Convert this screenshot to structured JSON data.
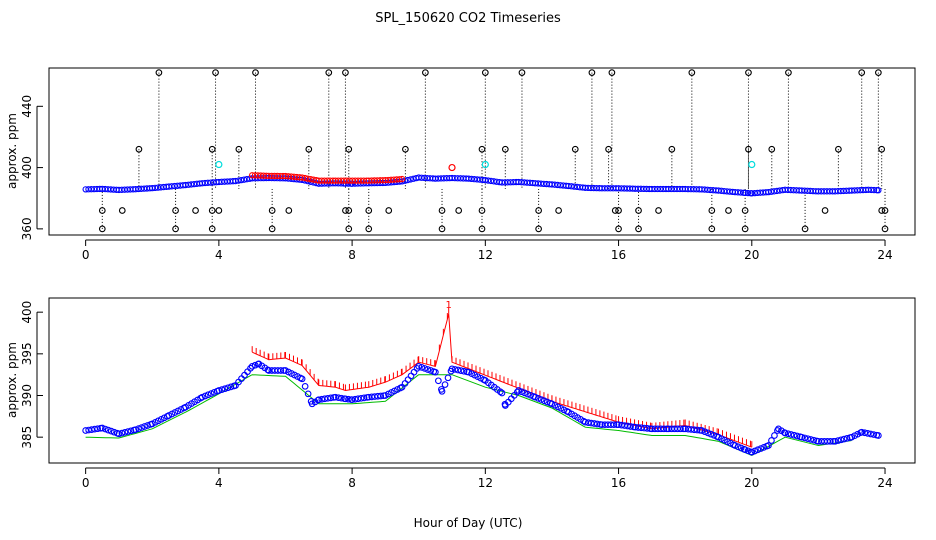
{
  "title": "SPL_150620  CO2 Timeseries",
  "chart_data": [
    {
      "type": "scatter",
      "panel": "top",
      "title": "SPL_150620  CO2 Timeseries",
      "xlabel": "",
      "ylabel": "approx. ppm",
      "xlim": [
        -1.1,
        24.9
      ],
      "ylim": [
        356,
        465
      ],
      "x_ticks": [
        "0",
        "4",
        "8",
        "12",
        "16",
        "20",
        "24"
      ],
      "y_ticks": [
        "360",
        "400",
        "440"
      ],
      "baseline_series": [
        {
          "name": "blue",
          "color": "#0000ff",
          "points": [
            [
              0,
              385.8
            ],
            [
              0.5,
              386.1
            ],
            [
              1,
              385.4
            ],
            [
              1.5,
              385.9
            ],
            [
              2,
              386.6
            ],
            [
              2.5,
              387.6
            ],
            [
              3,
              388.6
            ],
            [
              3.5,
              389.8
            ],
            [
              4,
              390.6
            ],
            [
              4.5,
              391.2
            ],
            [
              5,
              393.0
            ],
            [
              5.5,
              393.2
            ],
            [
              6,
              393.0
            ],
            [
              6.5,
              392.0
            ],
            [
              7,
              389.5
            ],
            [
              7.5,
              389.8
            ],
            [
              7.8,
              389.6
            ],
            [
              8,
              389.5
            ],
            [
              8.5,
              389.8
            ],
            [
              9,
              390.0
            ],
            [
              9.5,
              391.0
            ],
            [
              10,
              393.5
            ],
            [
              10.5,
              392.8
            ],
            [
              11,
              393.2
            ],
            [
              11.5,
              392.8
            ],
            [
              12,
              391.8
            ],
            [
              12.5,
              390.3
            ],
            [
              13,
              390.6
            ],
            [
              13.5,
              389.8
            ],
            [
              14,
              389.0
            ],
            [
              14.5,
              388.0
            ],
            [
              15,
              386.8
            ],
            [
              15.5,
              386.5
            ],
            [
              16,
              386.5
            ],
            [
              16.5,
              386.2
            ],
            [
              17,
              386.0
            ],
            [
              17.5,
              386.0
            ],
            [
              18,
              386.0
            ],
            [
              18.5,
              385.8
            ],
            [
              19,
              385.0
            ],
            [
              19.5,
              384.0
            ],
            [
              19.8,
              383.5
            ],
            [
              20,
              383.2
            ],
            [
              20.5,
              384.0
            ],
            [
              21,
              385.5
            ],
            [
              21.5,
              385.0
            ],
            [
              22,
              384.5
            ],
            [
              22.5,
              384.5
            ],
            [
              23,
              385.0
            ],
            [
              23.5,
              385.5
            ],
            [
              23.8,
              385.2
            ]
          ]
        },
        {
          "name": "red",
          "color": "#ff0000",
          "points": [
            [
              5,
              395.0
            ],
            [
              5.5,
              394.6
            ],
            [
              6,
              394.5
            ],
            [
              6.5,
              393.5
            ],
            [
              7,
              391.5
            ],
            [
              7.5,
              391.5
            ],
            [
              8.5,
              391.5
            ],
            [
              9,
              391.8
            ],
            [
              9.5,
              392.5
            ]
          ]
        }
      ],
      "spikes_high": [
        2.2,
        3.9,
        5.1,
        7.3,
        7.8,
        10.2,
        12.0,
        13.1,
        15.2,
        15.8,
        18.2,
        19.9,
        21.1,
        23.3,
        23.8
      ],
      "spikes_mid": [
        1.6,
        3.8,
        4.6,
        6.7,
        7.9,
        9.6,
        11.9,
        12.6,
        14.7,
        15.7,
        17.6,
        19.9,
        20.6,
        22.6,
        23.9
      ],
      "spikes_low": [
        0.5,
        1.1,
        2.7,
        3.3,
        3.8,
        4.0,
        5.6,
        6.1,
        7.8,
        7.9,
        8.5,
        9.1,
        10.7,
        11.2,
        11.9,
        13.6,
        14.2,
        15.9,
        16.0,
        16.6,
        17.2,
        18.8,
        19.3,
        19.8,
        22.2,
        23.9,
        24.0
      ],
      "spikes_floor": [
        0.5,
        2.7,
        3.8,
        5.6,
        7.9,
        8.5,
        10.7,
        11.9,
        13.6,
        16.0,
        16.6,
        18.8,
        19.8,
        21.6,
        24.0
      ],
      "highlights": [
        {
          "x": 4.0,
          "y": 402,
          "color": "#00dddd"
        },
        {
          "x": 12.0,
          "y": 402,
          "color": "#00dddd"
        },
        {
          "x": 20.0,
          "y": 402,
          "color": "#00dddd"
        },
        {
          "x": 11.0,
          "y": 400,
          "color": "#ff0000"
        }
      ]
    },
    {
      "type": "scatter",
      "panel": "bottom",
      "xlabel": "Hour of Day (UTC)",
      "ylabel": "approx. ppm",
      "xlim": [
        -1.1,
        24.9
      ],
      "ylim": [
        381.9,
        401.7
      ],
      "x_ticks": [
        "0",
        "4",
        "8",
        "12",
        "16",
        "20",
        "24"
      ],
      "y_ticks": [
        "385",
        "390",
        "395",
        "400"
      ],
      "series": [
        {
          "name": "blue circles",
          "color": "#0000ff",
          "points": [
            [
              0,
              385.8
            ],
            [
              0.5,
              386.1
            ],
            [
              1,
              385.4
            ],
            [
              1.5,
              385.9
            ],
            [
              2,
              386.6
            ],
            [
              2.5,
              387.6
            ],
            [
              3,
              388.6
            ],
            [
              3.5,
              389.8
            ],
            [
              4,
              390.6
            ],
            [
              4.5,
              391.2
            ],
            [
              5,
              393.5
            ],
            [
              5.2,
              393.8
            ],
            [
              5.5,
              393.0
            ],
            [
              6,
              393.0
            ],
            [
              6.5,
              392.0
            ],
            [
              6.8,
              389.0
            ],
            [
              7,
              389.5
            ],
            [
              7.5,
              389.8
            ],
            [
              7.8,
              389.6
            ],
            [
              8,
              389.5
            ],
            [
              8.5,
              389.8
            ],
            [
              9,
              390.0
            ],
            [
              9.5,
              391.0
            ],
            [
              10,
              393.5
            ],
            [
              10.5,
              392.8
            ],
            [
              10.7,
              390.5
            ],
            [
              11,
              393.2
            ],
            [
              11.5,
              392.8
            ],
            [
              12,
              391.8
            ],
            [
              12.5,
              390.3
            ],
            [
              12.6,
              388.8
            ],
            [
              13,
              390.6
            ],
            [
              13.5,
              389.8
            ],
            [
              14,
              389.0
            ],
            [
              14.5,
              388.0
            ],
            [
              15,
              386.8
            ],
            [
              15.5,
              386.5
            ],
            [
              16,
              386.5
            ],
            [
              16.5,
              386.2
            ],
            [
              17,
              386.0
            ],
            [
              17.5,
              386.0
            ],
            [
              18,
              386.0
            ],
            [
              18.5,
              385.8
            ],
            [
              19,
              385.0
            ],
            [
              19.5,
              384.0
            ],
            [
              19.8,
              383.5
            ],
            [
              20,
              383.2
            ],
            [
              20.5,
              384.0
            ],
            [
              20.8,
              386.0
            ],
            [
              21,
              385.5
            ],
            [
              21.5,
              385.0
            ],
            [
              22,
              384.5
            ],
            [
              22.5,
              384.5
            ],
            [
              23,
              385.0
            ],
            [
              23.3,
              385.6
            ],
            [
              23.8,
              385.2
            ]
          ]
        },
        {
          "name": "green",
          "color": "#00bb00",
          "points": [
            [
              0,
              385.0
            ],
            [
              1,
              384.9
            ],
            [
              2,
              386.0
            ],
            [
              3,
              388.0
            ],
            [
              4,
              390.2
            ],
            [
              5,
              392.5
            ],
            [
              6,
              392.3
            ],
            [
              7,
              389.0
            ],
            [
              8,
              389.0
            ],
            [
              9,
              389.3
            ],
            [
              10,
              392.5
            ],
            [
              11,
              392.5
            ],
            [
              12,
              391.0
            ],
            [
              13,
              390.0
            ],
            [
              14,
              388.5
            ],
            [
              15,
              386.2
            ],
            [
              16,
              385.8
            ],
            [
              17,
              385.2
            ],
            [
              18,
              385.2
            ],
            [
              19,
              384.5
            ],
            [
              20,
              382.8
            ],
            [
              21,
              385.0
            ],
            [
              22,
              384.0
            ],
            [
              23,
              384.6
            ]
          ]
        },
        {
          "name": "red",
          "color": "#ff0000",
          "points": [
            [
              5,
              395.2
            ],
            [
              5.5,
              394.3
            ],
            [
              6,
              394.5
            ],
            [
              6.5,
              393.6
            ],
            [
              7,
              391.2
            ],
            [
              7.5,
              391.0
            ],
            [
              7.8,
              390.6
            ],
            [
              8.5,
              391.0
            ],
            [
              9,
              391.6
            ],
            [
              9.5,
              392.5
            ],
            [
              10,
              394.0
            ],
            [
              10.5,
              393.5
            ],
            [
              10.9,
              399.8
            ],
            [
              11,
              394.0
            ],
            [
              14,
              389.3
            ],
            [
              16,
              386.8
            ],
            [
              17,
              386.0
            ],
            [
              18,
              386.4
            ],
            [
              19,
              385.3
            ],
            [
              20,
              383.8
            ]
          ]
        }
      ],
      "annotations": [
        {
          "x": 10.9,
          "y": 400.5,
          "text": "1"
        }
      ]
    }
  ]
}
